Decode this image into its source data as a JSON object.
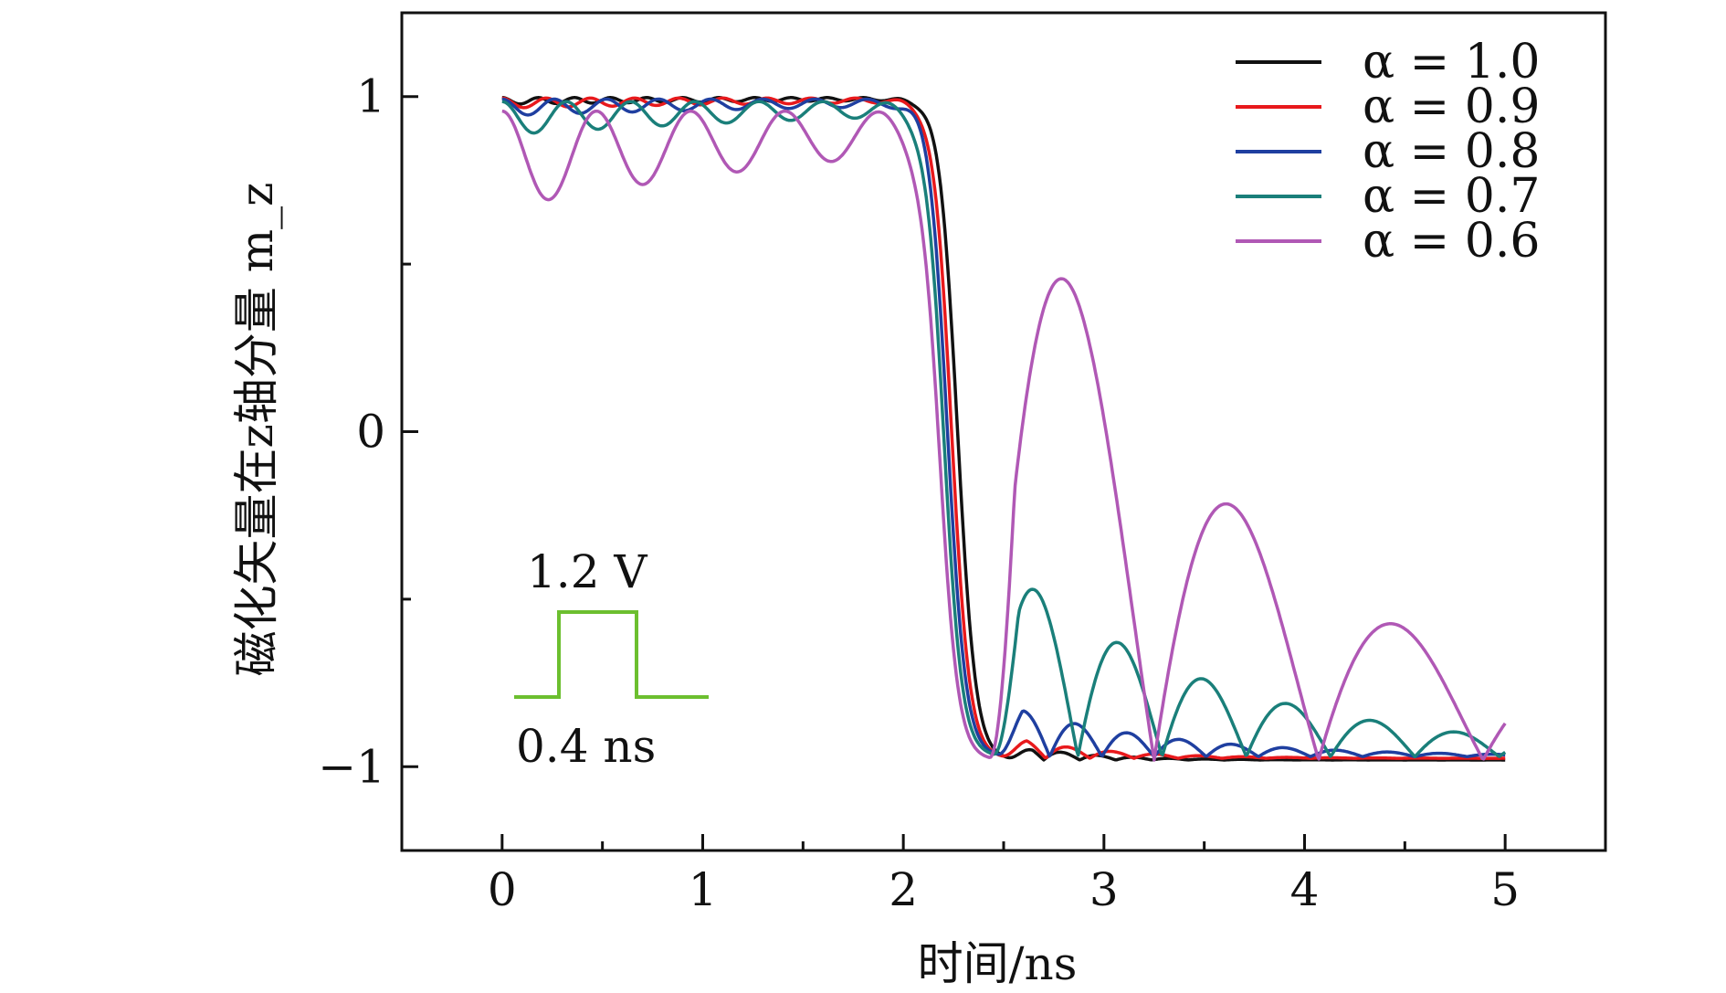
{
  "chart_data": {
    "type": "line",
    "xlabel": "时间/ns",
    "ylabel": "磁化矢量在z轴分量 m_z",
    "xlim": [
      -0.5,
      5.5
    ],
    "ylim": [
      -1.25,
      1.25
    ],
    "xticks": [
      0,
      1,
      2,
      3,
      4,
      5
    ],
    "xtick_labels": [
      "0",
      "1",
      "2",
      "3",
      "4",
      "5"
    ],
    "yticks": [
      -1,
      0,
      1
    ],
    "ytick_labels": [
      "−1",
      "0",
      "1"
    ],
    "legend_position": "top-right",
    "series": [
      {
        "name": "α = 1.0",
        "color": "#111111",
        "amp0": 0.02,
        "period0": 0.18,
        "final": -0.98,
        "fallCenter": 2.27,
        "fallWidth": 0.045,
        "amp1": 0.05,
        "period1": 0.18,
        "decay1": 0.35
      },
      {
        "name": "α = 0.9",
        "color": "#e8191c",
        "amp0": 0.03,
        "period0": 0.22,
        "final": -0.975,
        "fallCenter": 2.24,
        "fallWidth": 0.045,
        "amp1": 0.07,
        "period1": 0.22,
        "decay1": 0.45
      },
      {
        "name": "α = 0.8",
        "color": "#1f3fa0",
        "amp0": 0.05,
        "period0": 0.26,
        "final": -0.97,
        "fallCenter": 2.22,
        "fallWidth": 0.045,
        "amp1": 0.16,
        "period1": 0.26,
        "decay1": 0.8
      },
      {
        "name": "α = 0.7",
        "color": "#1a7f7a",
        "amp0": 0.1,
        "period0": 0.32,
        "final": -0.97,
        "fallCenter": 2.2,
        "fallWidth": 0.045,
        "amp1": 0.6,
        "period1": 0.42,
        "decay1": 1.1
      },
      {
        "name": "α = 0.6",
        "color": "#b058b5",
        "amp0": 0.29,
        "period0": 0.47,
        "final": -0.98,
        "fallCenter": 2.18,
        "fallWidth": 0.045,
        "amp1": 1.93,
        "period1": 0.82,
        "decay1": 1.3
      }
    ],
    "inset": {
      "voltage_label": "1.2 V",
      "duration_label": "0.4 ns",
      "color": "#6cbf2f"
    }
  }
}
